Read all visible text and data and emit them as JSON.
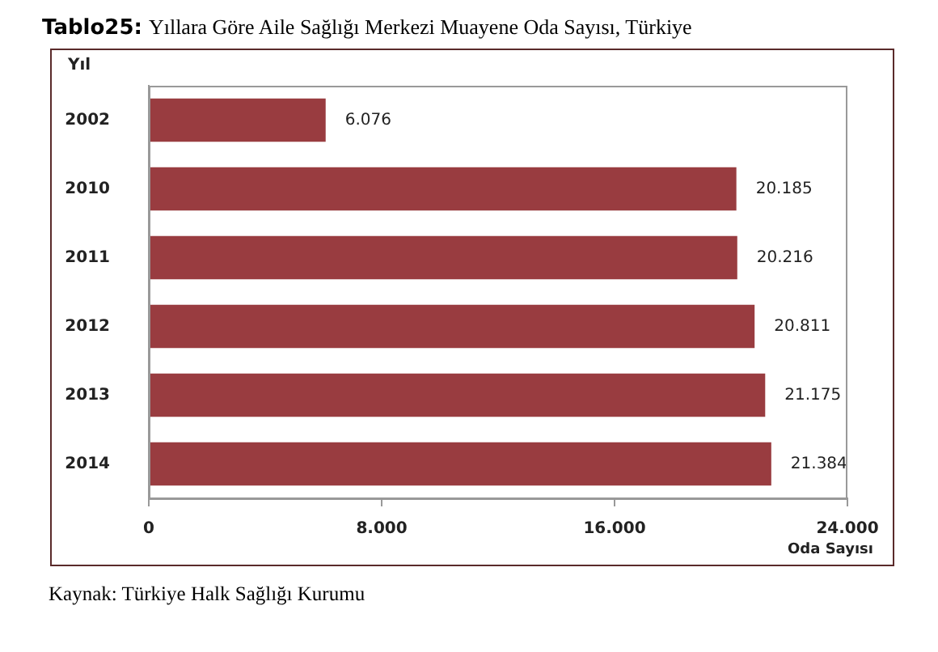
{
  "chart_data": {
    "type": "bar",
    "orientation": "horizontal",
    "title": "Tablo25:",
    "subtitle": "Yıllara Göre Aile Sağlığı Merkezi Muayene Oda Sayısı, Türkiye",
    "ylabel": "Yıl",
    "xlabel": "Oda Sayısı",
    "categories": [
      "2002",
      "2010",
      "2011",
      "2012",
      "2013",
      "2014"
    ],
    "values": [
      6076,
      20185,
      20216,
      20811,
      21175,
      21384
    ],
    "value_labels": [
      "6.076",
      "20.185",
      "20.216",
      "20.811",
      "21.175",
      "21.384"
    ],
    "color": "#993c40",
    "xlim": [
      0,
      24000
    ],
    "xticks": [
      0,
      {
        "value": 8000,
        "label": "8.000"
      },
      {
        "value": 16000,
        "label": "16.000"
      },
      {
        "value": 24000,
        "label": "24.000"
      }
    ],
    "grid": false,
    "legend": false,
    "annotations": [
      "Kaynak: Türkiye Halk Sağlığı Kurumu"
    ]
  }
}
